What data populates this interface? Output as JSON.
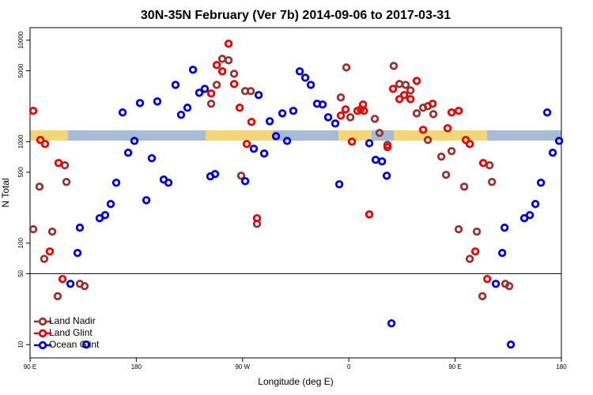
{
  "chart_data": {
    "type": "scatter",
    "title": "30N-35N February (Ver 7b)   2014-09-06 to 2017-03-31",
    "x_label": "Longitude (deg E)",
    "y_label": "N Total",
    "xlim": [
      90,
      540
    ],
    "xticks": [
      {
        "value": 90,
        "label": "90 E"
      },
      180,
      {
        "value": 270,
        "label": "90 W"
      },
      {
        "value": 360,
        "label": "0"
      },
      {
        "value": 450,
        "label": "90 E"
      },
      {
        "value": 540,
        "label": "180"
      }
    ],
    "ylim": [
      7.4,
      13300
    ],
    "log_y": true,
    "yticks": [
      10,
      50,
      100,
      500,
      1000,
      5000,
      10000
    ],
    "hline": 50,
    "legend": "bottom-left",
    "series": [
      {
        "name": "Land Nadir",
        "color": "#993333",
        "x": [
          92.7,
          98,
          102,
          108.8,
          113.4,
          119.5,
          120.8,
          132.2,
          136.2,
          243.4,
          248.1,
          252.8,
          258.1,
          262.8,
          272.2,
          276.9,
          268.8,
          282.2,
          353.2,
          357.9,
          361.3,
          370,
          382,
          386,
          392.7,
          398,
          402.8,
          408.1,
          412.2,
          417.5,
          422.9,
          426.9,
          431.6,
          426.9,
          438.3,
          442.3,
          447,
          453,
          457.7,
          462.4,
          468.4,
          473.1,
          479.2,
          481.2,
          492.5,
          495.9
        ],
        "values": [
          137,
          360,
          70,
          130,
          30,
          585,
          401,
          39.7,
          37.7,
          2364,
          3630,
          6560,
          6340,
          4670,
          3150,
          3150,
          462,
          155,
          2730,
          5390,
          1740,
          2080,
          1680,
          1220,
          931,
          5580,
          3700,
          3630,
          3200,
          1905,
          2160,
          2240,
          1870,
          1040,
          712,
          471,
          807,
          137,
          360,
          70,
          130,
          30,
          585,
          401,
          39.7,
          37.7
        ]
      },
      {
        "name": "Land Glint",
        "color": "#ee0000",
        "x": [
          92.7,
          98.7,
          102.7,
          106.7,
          114.1,
          117.5,
          243.4,
          248.1,
          252.8,
          258.1,
          262.8,
          267.5,
          273.5,
          277.5,
          282.2,
          353.2,
          357.2,
          362.6,
          367.3,
          372,
          372.7,
          377.3,
          392.7,
          397.4,
          402.8,
          406.8,
          412.2,
          417.5,
          422.9,
          430.9,
          443.6,
          447,
          453,
          459,
          462.4,
          467.1,
          473.8,
          477.2
        ],
        "values": [
          2013,
          1040,
          948,
          82.8,
          616,
          44.3,
          2985,
          5690,
          4930,
          9230,
          3700,
          2160,
          948,
          1566,
          176,
          1806,
          2080,
          1000,
          2013,
          2322,
          2013,
          192,
          883,
          3320,
          2630,
          2880,
          2630,
          3970,
          1309,
          2364,
          1357,
          1940,
          2013,
          1040,
          948,
          82.8,
          616,
          44.3
        ]
      },
      {
        "name": "Ocean Glint",
        "color": "#0000dd",
        "x": [
          124.2,
          130.2,
          132.2,
          137.6,
          148.9,
          153.6,
          158.3,
          163,
          168.4,
          173.1,
          178.4,
          183.1,
          188.5,
          193.1,
          197.8,
          203.2,
          207.2,
          213.2,
          217.9,
          223.3,
          228,
          233.3,
          238,
          242.7,
          246.7,
          272.2,
          279.5,
          283.6,
          288.3,
          293,
          298.3,
          303.7,
          307.7,
          313,
          318.4,
          323.1,
          327.8,
          333.1,
          337.8,
          342.5,
          348.5,
          351.9,
          377.3,
          382.7,
          388.1,
          392.1,
          396.1,
          484.5,
          489.9,
          491.9,
          497.2,
          508.6,
          513.3,
          518,
          522.7,
          528,
          532.7,
          538.1
        ],
        "values": [
          39.7,
          80,
          142,
          10,
          176,
          189,
          243,
          394,
          1940,
          778,
          1018,
          2405,
          265,
          687,
          2493,
          423,
          394,
          3630,
          1840,
          2160,
          5110,
          3035,
          3320,
          455,
          480,
          408,
          851,
          2880,
          764,
          1592,
          1133,
          1905,
          1018,
          2013,
          4930,
          4270,
          3630,
          2364,
          2322,
          1740,
          1510,
          380,
          964,
          662,
          639,
          462,
          16.2,
          39.7,
          80,
          142,
          10,
          176,
          189,
          243,
          394,
          1940,
          778,
          1018
        ]
      }
    ]
  }
}
